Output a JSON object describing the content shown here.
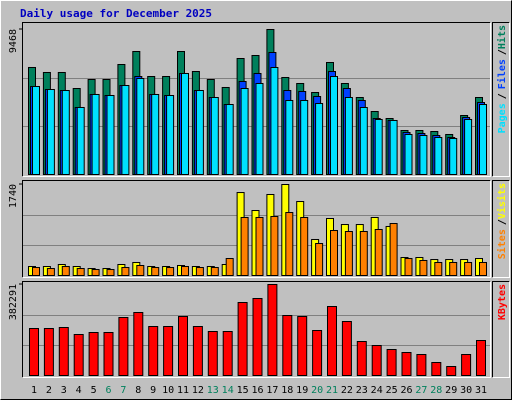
{
  "chart_data": {
    "title": "Daily usage for December 2025",
    "categories": [
      "1",
      "2",
      "3",
      "4",
      "5",
      "6",
      "7",
      "8",
      "9",
      "10",
      "11",
      "12",
      "13",
      "14",
      "15",
      "16",
      "17",
      "18",
      "19",
      "20",
      "21",
      "22",
      "23",
      "24",
      "25",
      "26",
      "27",
      "28",
      "29",
      "30",
      "31"
    ],
    "category_colors": [
      "#000000",
      "#000000",
      "#000000",
      "#000000",
      "#000000",
      "#00805c",
      "#00805c",
      "#000000",
      "#000000",
      "#000000",
      "#000000",
      "#000000",
      "#00805c",
      "#00805c",
      "#000000",
      "#000000",
      "#000000",
      "#000000",
      "#000000",
      "#00805c",
      "#00805c",
      "#000000",
      "#000000",
      "#000000",
      "#000000",
      "#000000",
      "#00805c",
      "#00805c",
      "#000000",
      "#000000",
      "#000000"
    ],
    "legend_separator": "/",
    "panels": [
      {
        "type": "bar",
        "ylim": [
          0,
          9468
        ],
        "yticks": [
          9468
        ],
        "series": [
          {
            "name": "Hits",
            "color": "#00805c",
            "values": [
              7004,
              6680,
              6680,
              5642,
              6226,
              6226,
              7198,
              8041,
              6420,
              6420,
              8041,
              6744,
              6226,
              5707,
              7587,
              7782,
              9468,
              6355,
              5966,
              5382,
              7328,
              5966,
              5058,
              4150,
              3696,
              2918,
              2918,
              2853,
              2659,
              3891,
              5058
            ]
          },
          {
            "name": "Files",
            "color": "#0040ff",
            "values": [
              5772,
              5577,
              5512,
              4410,
              5253,
              5188,
              5836,
              6420,
              5253,
              5188,
              6615,
              5512,
              5058,
              4604,
              6096,
              6615,
              7976,
              5512,
              5447,
              5123,
              6744,
              5642,
              4864,
              3696,
              3567,
              2788,
              2724,
              2594,
              2464,
              3761,
              4734
            ]
          },
          {
            "name": "Pages",
            "color": "#00e0ff",
            "values": [
              5772,
              5577,
              5512,
              4410,
              5253,
              5188,
              5836,
              6290,
              5253,
              5188,
              6615,
              5512,
              5058,
              4604,
              5642,
              5966,
              7004,
              4864,
              4864,
              4669,
              6420,
              5058,
              4410,
              3632,
              3567,
              2659,
              2594,
              2464,
              2399,
              3632,
              4604
            ]
          }
        ]
      },
      {
        "type": "bar",
        "ylim": [
          0,
          1740
        ],
        "yticks": [
          1740
        ],
        "series": [
          {
            "name": "Visits",
            "color": "#ffff00",
            "values": [
              189,
              189,
              227,
              189,
              151,
              151,
              227,
              265,
              189,
              189,
              208,
              189,
              189,
              227,
              1588,
              1248,
              1551,
              1740,
              1418,
              700,
              1097,
              983,
              983,
              1116,
              946,
              359,
              359,
              321,
              321,
              321,
              340
            ]
          },
          {
            "name": "Sites",
            "color": "#ff8000",
            "values": [
              170,
              151,
              189,
              151,
              132,
              132,
              170,
              208,
              170,
              170,
              189,
              170,
              170,
              340,
              1116,
              1116,
              1135,
              1210,
              1116,
              624,
              870,
              851,
              851,
              889,
              1002,
              340,
              303,
              265,
              265,
              265,
              265
            ]
          }
        ]
      },
      {
        "type": "bar",
        "ylim": [
          0,
          382291
        ],
        "yticks": [
          382291
        ],
        "series": [
          {
            "name": "KBytes",
            "color": "#ff0000",
            "values": [
              199440,
              199440,
              203595,
              174510,
              182820,
              182820,
              245145,
              265920,
              207750,
              207750,
              249300,
              207750,
              186975,
              186975,
              307470,
              324090,
              382291,
              253455,
              249300,
              191130,
              290850,
              228525,
              145425,
              128805,
              112185,
              99720,
              91410,
              58170,
              41550,
              91410,
              149580
            ]
          }
        ]
      }
    ]
  }
}
